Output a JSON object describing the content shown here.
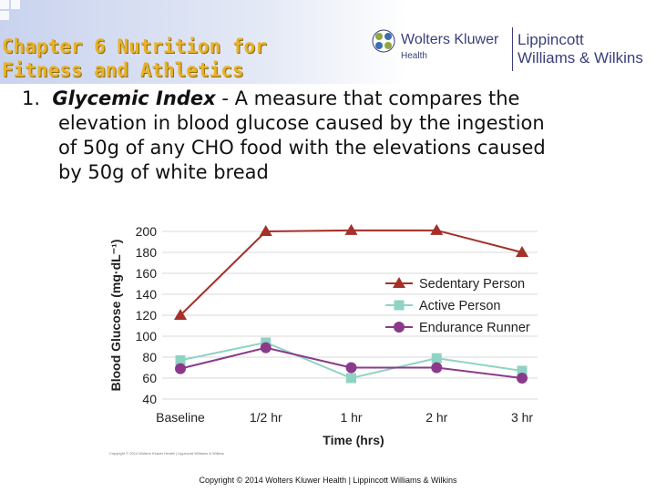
{
  "slide": {
    "title_line1": "Chapter 6 Nutrition for",
    "title_line2": "Fitness and Athletics",
    "number": "1.",
    "term": "Glycemic Index",
    "definition_first": " - A measure that compares the",
    "definition_line2": "elevation in blood glucose caused by the ingestion",
    "definition_line3": "of 50g of any CHO food with the elevations caused",
    "definition_line4": "by 50g of white bread"
  },
  "logo": {
    "wk": "Wolters Kluwer",
    "health": "Health",
    "lww_line1": "Lippincott",
    "lww_line2": "Williams & Wilkins"
  },
  "footer": "Copyright © 2014 Wolters Kluwer Health | Lippincott Williams & Wilkins",
  "chart_copyright": "Copyright © 2014 Wolters Kluwer Health | Lippincott Williams & Wilkins",
  "colors": {
    "title": "#e9b227",
    "sedentary": "#a5302a",
    "active": "#8fd3c4",
    "endurance": "#8b3a8b",
    "logo": "#3a3f7a"
  },
  "chart_data": {
    "type": "line",
    "xlabel": "Time (hrs)",
    "ylabel": "Blood Glucose (mg·dL⁻¹)",
    "categories": [
      "Baseline",
      "1/2 hr",
      "1 hr",
      "2 hr",
      "3 hr"
    ],
    "ylim": [
      40,
      200
    ],
    "yticks": [
      40,
      60,
      80,
      100,
      120,
      140,
      160,
      180,
      200
    ],
    "legend_position": "right",
    "series": [
      {
        "name": "Sedentary Person",
        "marker": "triangle",
        "color": "#a5302a",
        "values": [
          120,
          200,
          201,
          201,
          180
        ]
      },
      {
        "name": "Active Person",
        "marker": "square",
        "color": "#8fd3c4",
        "values": [
          77,
          94,
          60,
          79,
          67
        ]
      },
      {
        "name": "Endurance Runner",
        "marker": "circle",
        "color": "#8b3a8b",
        "values": [
          69,
          89,
          70,
          70,
          60
        ]
      }
    ]
  }
}
